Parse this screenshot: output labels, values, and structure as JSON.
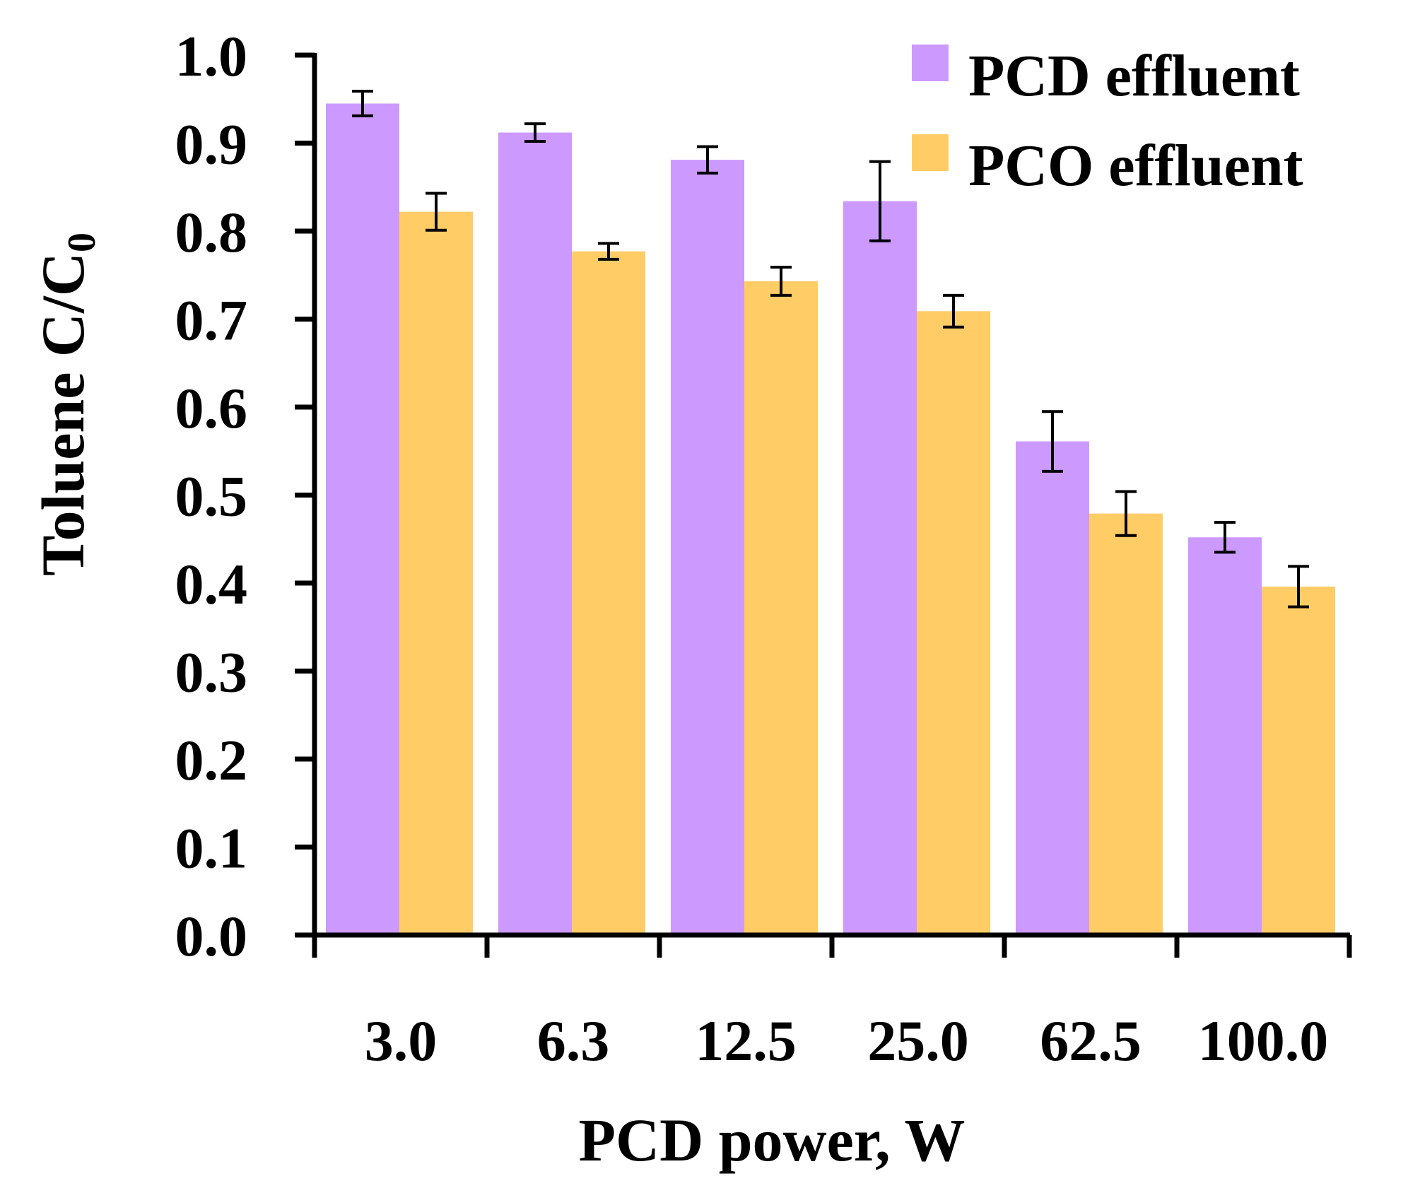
{
  "chart_data": {
    "type": "bar",
    "title": "",
    "xlabel": "PCD power, W",
    "ylabel": {
      "main": "Toluene  C/C",
      "subscript": "0"
    },
    "categories": [
      "3.0",
      "6.3",
      "12.5",
      "25.0",
      "62.5",
      "100.0"
    ],
    "ylim": [
      0,
      1.0
    ],
    "yticks": [
      "0.0",
      "0.1",
      "0.2",
      "0.3",
      "0.4",
      "0.5",
      "0.6",
      "0.7",
      "0.8",
      "0.9",
      "1.0"
    ],
    "grid": false,
    "legend_position": "top-right",
    "series": [
      {
        "name": "PCD effluent",
        "color": "#cc99ff",
        "values": [
          0.945,
          0.912,
          0.881,
          0.834,
          0.561,
          0.452
        ],
        "errors": [
          0.014,
          0.01,
          0.015,
          0.045,
          0.034,
          0.017
        ]
      },
      {
        "name": "PCO effluent",
        "color": "#ffcc66",
        "values": [
          0.822,
          0.777,
          0.743,
          0.709,
          0.479,
          0.396
        ],
        "errors": [
          0.021,
          0.009,
          0.016,
          0.018,
          0.025,
          0.023
        ]
      }
    ]
  }
}
